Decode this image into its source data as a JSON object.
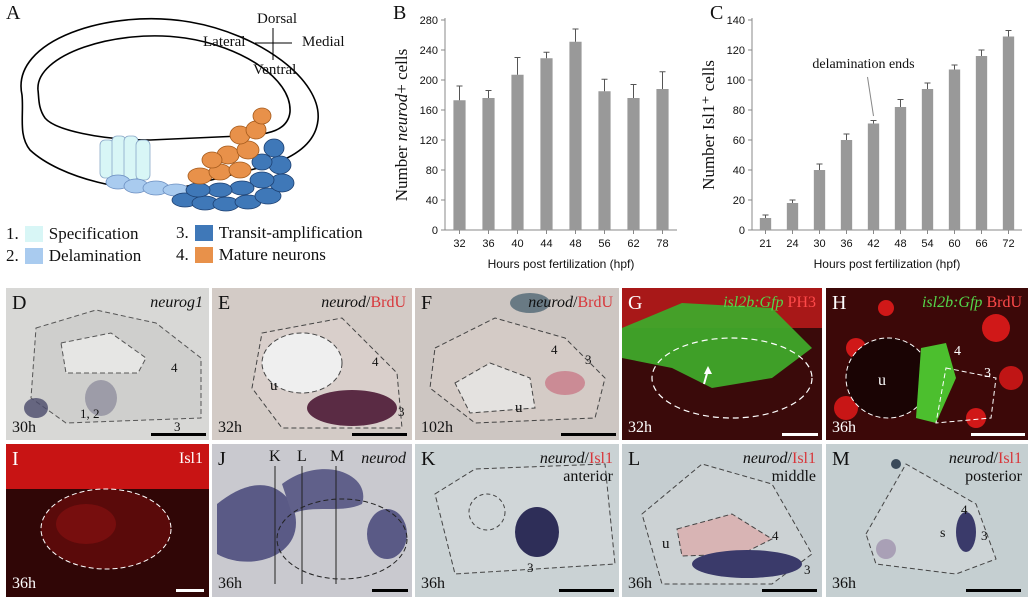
{
  "panelA": {
    "label": "A",
    "compass": {
      "dorsal": "Dorsal",
      "ventral": "Ventral",
      "lateral": "Lateral",
      "medial": "Medial"
    },
    "legend": [
      {
        "num": "1.",
        "text": "Specification",
        "color": "#d8f6f6"
      },
      {
        "num": "2.",
        "text": "Delamination",
        "color": "#a9cbef"
      },
      {
        "num": "3.",
        "text": "Transit-amplification",
        "color": "#3f78b8"
      },
      {
        "num": "4.",
        "text": "Mature neurons",
        "color": "#e8914a"
      }
    ]
  },
  "chart_data": [
    {
      "panel": "B",
      "type": "bar",
      "ylabel_pre": "Number ",
      "ylabel_italic": "neurod",
      "ylabel_post": "+ cells",
      "xlabel": "Hours post fertilization (hpf)",
      "categories": [
        "32",
        "36",
        "40",
        "44",
        "48",
        "56",
        "62",
        "78"
      ],
      "values": [
        173,
        176,
        207,
        229,
        251,
        185,
        176,
        188
      ],
      "errors": [
        19,
        10,
        23,
        8,
        17,
        16,
        18,
        23
      ],
      "yticks": [
        "0",
        "40",
        "80",
        "120",
        "160",
        "200",
        "240",
        "280"
      ],
      "ylim": [
        0,
        280
      ],
      "bar_color": "#999999"
    },
    {
      "panel": "C",
      "type": "bar",
      "ylabel": "Number Isl1⁺ cells",
      "xlabel": "Hours post fertilization (hpf)",
      "categories": [
        "21",
        "24",
        "30",
        "36",
        "42",
        "48",
        "54",
        "60",
        "66",
        "72"
      ],
      "values": [
        8,
        18,
        40,
        60,
        71,
        82,
        94,
        107,
        116,
        129
      ],
      "errors": [
        2,
        2,
        4,
        4,
        2,
        5,
        4,
        3,
        4,
        4
      ],
      "yticks": [
        "0",
        "20",
        "40",
        "60",
        "80",
        "100",
        "120",
        "140"
      ],
      "ylim": [
        0,
        140
      ],
      "annotation": "delamination ends",
      "bar_color": "#999999"
    }
  ],
  "panels": {
    "D": {
      "label": "D",
      "marker": "neurog1",
      "time": "30h",
      "n12": "1, 2",
      "n3": "3",
      "n4": "4"
    },
    "E": {
      "label": "E",
      "marker": "neurod",
      "sep": "/",
      "marker2": "BrdU",
      "time": "32h",
      "u": "u",
      "n3": "3",
      "n4": "4"
    },
    "F": {
      "label": "F",
      "marker": "neurod",
      "sep": "/",
      "marker2": "BrdU",
      "time": "102h",
      "u": "u",
      "n3": "3",
      "n4": "4"
    },
    "G": {
      "label": "G",
      "marker": "isl2b:Gfp",
      "marker2": "PH3",
      "time": "32h"
    },
    "H": {
      "label": "H",
      "marker": "isl2b:Gfp",
      "marker2": "BrdU",
      "time": "36h",
      "u": "u",
      "n3": "3",
      "n4": "4"
    },
    "I": {
      "label": "I",
      "marker2": "Isl1",
      "time": "36h"
    },
    "J": {
      "label": "J",
      "marker": "neurod",
      "time": "36h",
      "K": "K",
      "L": "L",
      "M": "M"
    },
    "K": {
      "label": "K",
      "marker": "neurod",
      "sep": "/",
      "marker2": "Isl1",
      "region": "anterior",
      "time": "36h",
      "n3": "3"
    },
    "L": {
      "label": "L",
      "marker": "neurod",
      "sep": "/",
      "marker2": "Isl1",
      "region": "middle",
      "time": "36h",
      "u": "u",
      "n3": "3",
      "n4": "4"
    },
    "M": {
      "label": "M",
      "marker": "neurod",
      "sep": "/",
      "marker2": "Isl1",
      "region": "posterior",
      "time": "36h",
      "s": "s",
      "n3": "3",
      "n4": "4"
    }
  }
}
